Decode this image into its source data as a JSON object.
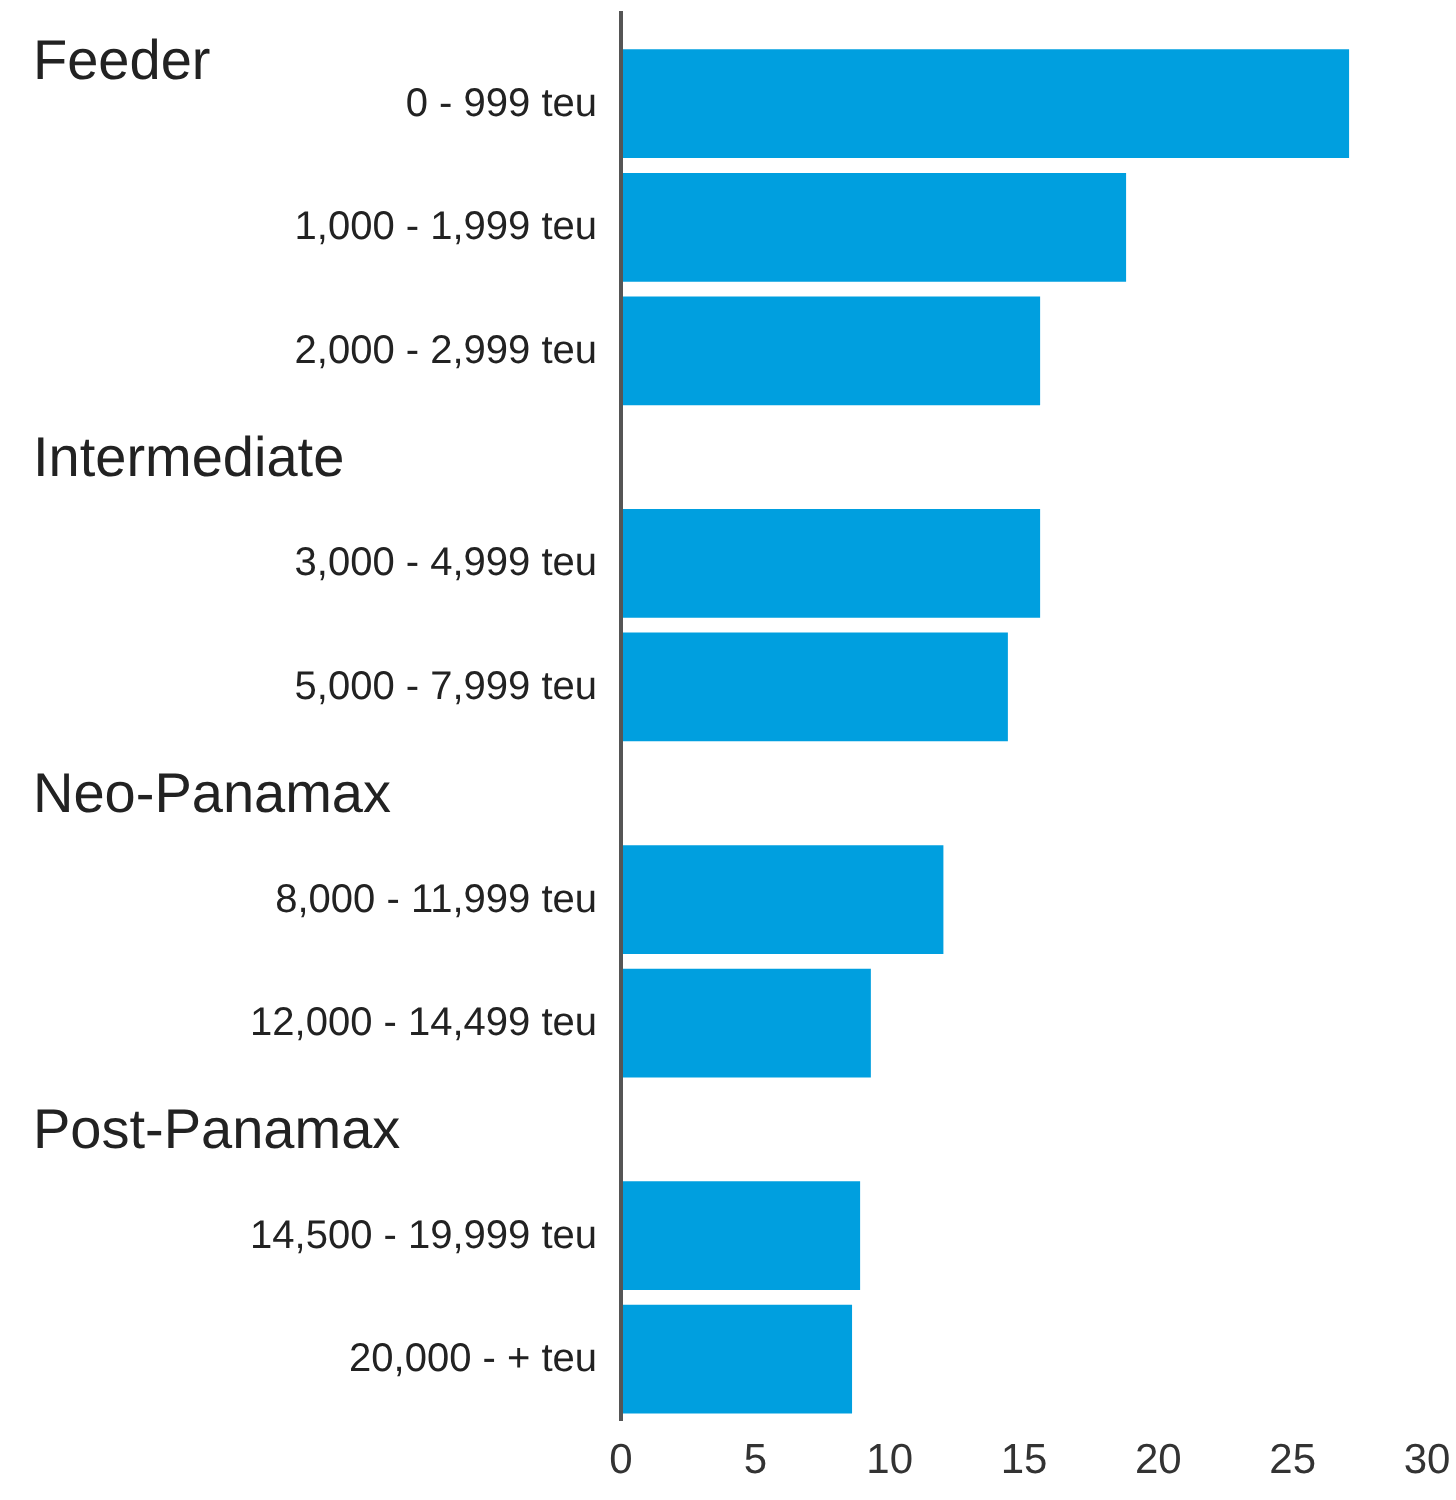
{
  "chart_data": {
    "type": "bar",
    "orientation": "horizontal",
    "categories": [
      "0 - 999 teu",
      "1,000 - 1,999 teu",
      "2,000 - 2,999 teu",
      "3,000 - 4,999 teu",
      "5,000 - 7,999 teu",
      "8,000 - 11,999 teu",
      "12,000 - 14,499 teu",
      "14,500 - 19,999 teu",
      "20,000 - + teu"
    ],
    "values": [
      27.1,
      18.8,
      15.6,
      15.6,
      14.4,
      12.0,
      9.3,
      8.9,
      8.6
    ],
    "color": "#009fdf",
    "xlim": [
      0,
      30
    ],
    "xticks": [
      0,
      5,
      10,
      15,
      20,
      25,
      30
    ],
    "annotations": [
      "Feeder",
      "Intermediate",
      "Neo-Panamax",
      "Post-Panamax"
    ],
    "grid": false,
    "legend": false
  }
}
